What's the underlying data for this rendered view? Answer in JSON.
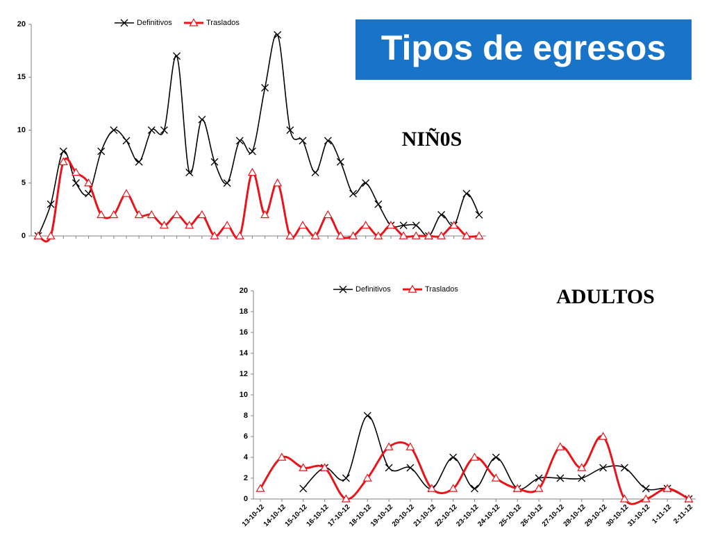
{
  "title": "Tipos de egresos",
  "chart_data": [
    {
      "type": "line",
      "title": "NIÑ0S",
      "categories": [
        null,
        null,
        null,
        null,
        null,
        null,
        null,
        null,
        null,
        null,
        null,
        null,
        null,
        null,
        null,
        null,
        null,
        null,
        null,
        null,
        null,
        null,
        null,
        null,
        null,
        null,
        null,
        null,
        null,
        null,
        null,
        null,
        null,
        null,
        null,
        null
      ],
      "series": [
        {
          "name": "Definitivos",
          "color": "#000000",
          "marker": "x",
          "values": [
            0,
            3,
            8,
            5,
            4,
            8,
            10,
            9,
            7,
            10,
            10,
            17,
            6,
            11,
            7,
            5,
            9,
            8,
            14,
            19,
            10,
            9,
            6,
            9,
            7,
            4,
            5,
            3,
            1,
            1,
            1,
            0,
            2,
            1,
            4,
            2
          ]
        },
        {
          "name": "Traslados",
          "color": "#e8141a",
          "marker": "triangle",
          "values": [
            0,
            0,
            7,
            6,
            5,
            2,
            2,
            4,
            2,
            2,
            1,
            2,
            1,
            2,
            0,
            1,
            0,
            6,
            2,
            5,
            0,
            1,
            0,
            2,
            0,
            0,
            1,
            0,
            1,
            0,
            0,
            0,
            0,
            1,
            0,
            0
          ]
        }
      ],
      "ylim": [
        0,
        20
      ],
      "yticks": [
        0,
        5,
        10,
        15,
        20
      ],
      "legend": "top",
      "grid": false
    },
    {
      "type": "line",
      "title": "ADULTOS",
      "categories": [
        "13-10-12",
        "14-10-12",
        "15-10-12",
        "16-10-12",
        "17-10-12",
        "18-10-12",
        "19-10-12",
        "20-10-12",
        "21-10-12",
        "22-10-12",
        "23-10-12",
        "24-10-12",
        "25-10-12",
        "26-10-12",
        "27-10-12",
        "28-10-12",
        "29-10-12",
        "30-10-12",
        "31-10-12",
        "1-11-12",
        "2-11-12"
      ],
      "series": [
        {
          "name": "Definitivos",
          "color": "#000000",
          "marker": "x",
          "values": [
            null,
            null,
            1,
            3,
            2,
            8,
            3,
            3,
            1,
            4,
            1,
            4,
            1,
            2,
            2,
            2,
            3,
            3,
            1,
            1,
            0
          ]
        },
        {
          "name": "Traslados",
          "color": "#e8141a",
          "marker": "triangle",
          "values": [
            1,
            4,
            3,
            3,
            0,
            2,
            5,
            5,
            1,
            1,
            4,
            2,
            1,
            1,
            5,
            3,
            6,
            0,
            0,
            1,
            0
          ]
        }
      ],
      "ylim": [
        0,
        20
      ],
      "yticks": [
        0,
        2,
        4,
        6,
        8,
        10,
        12,
        14,
        16,
        18,
        20
      ],
      "legend": "top",
      "grid": false
    }
  ]
}
